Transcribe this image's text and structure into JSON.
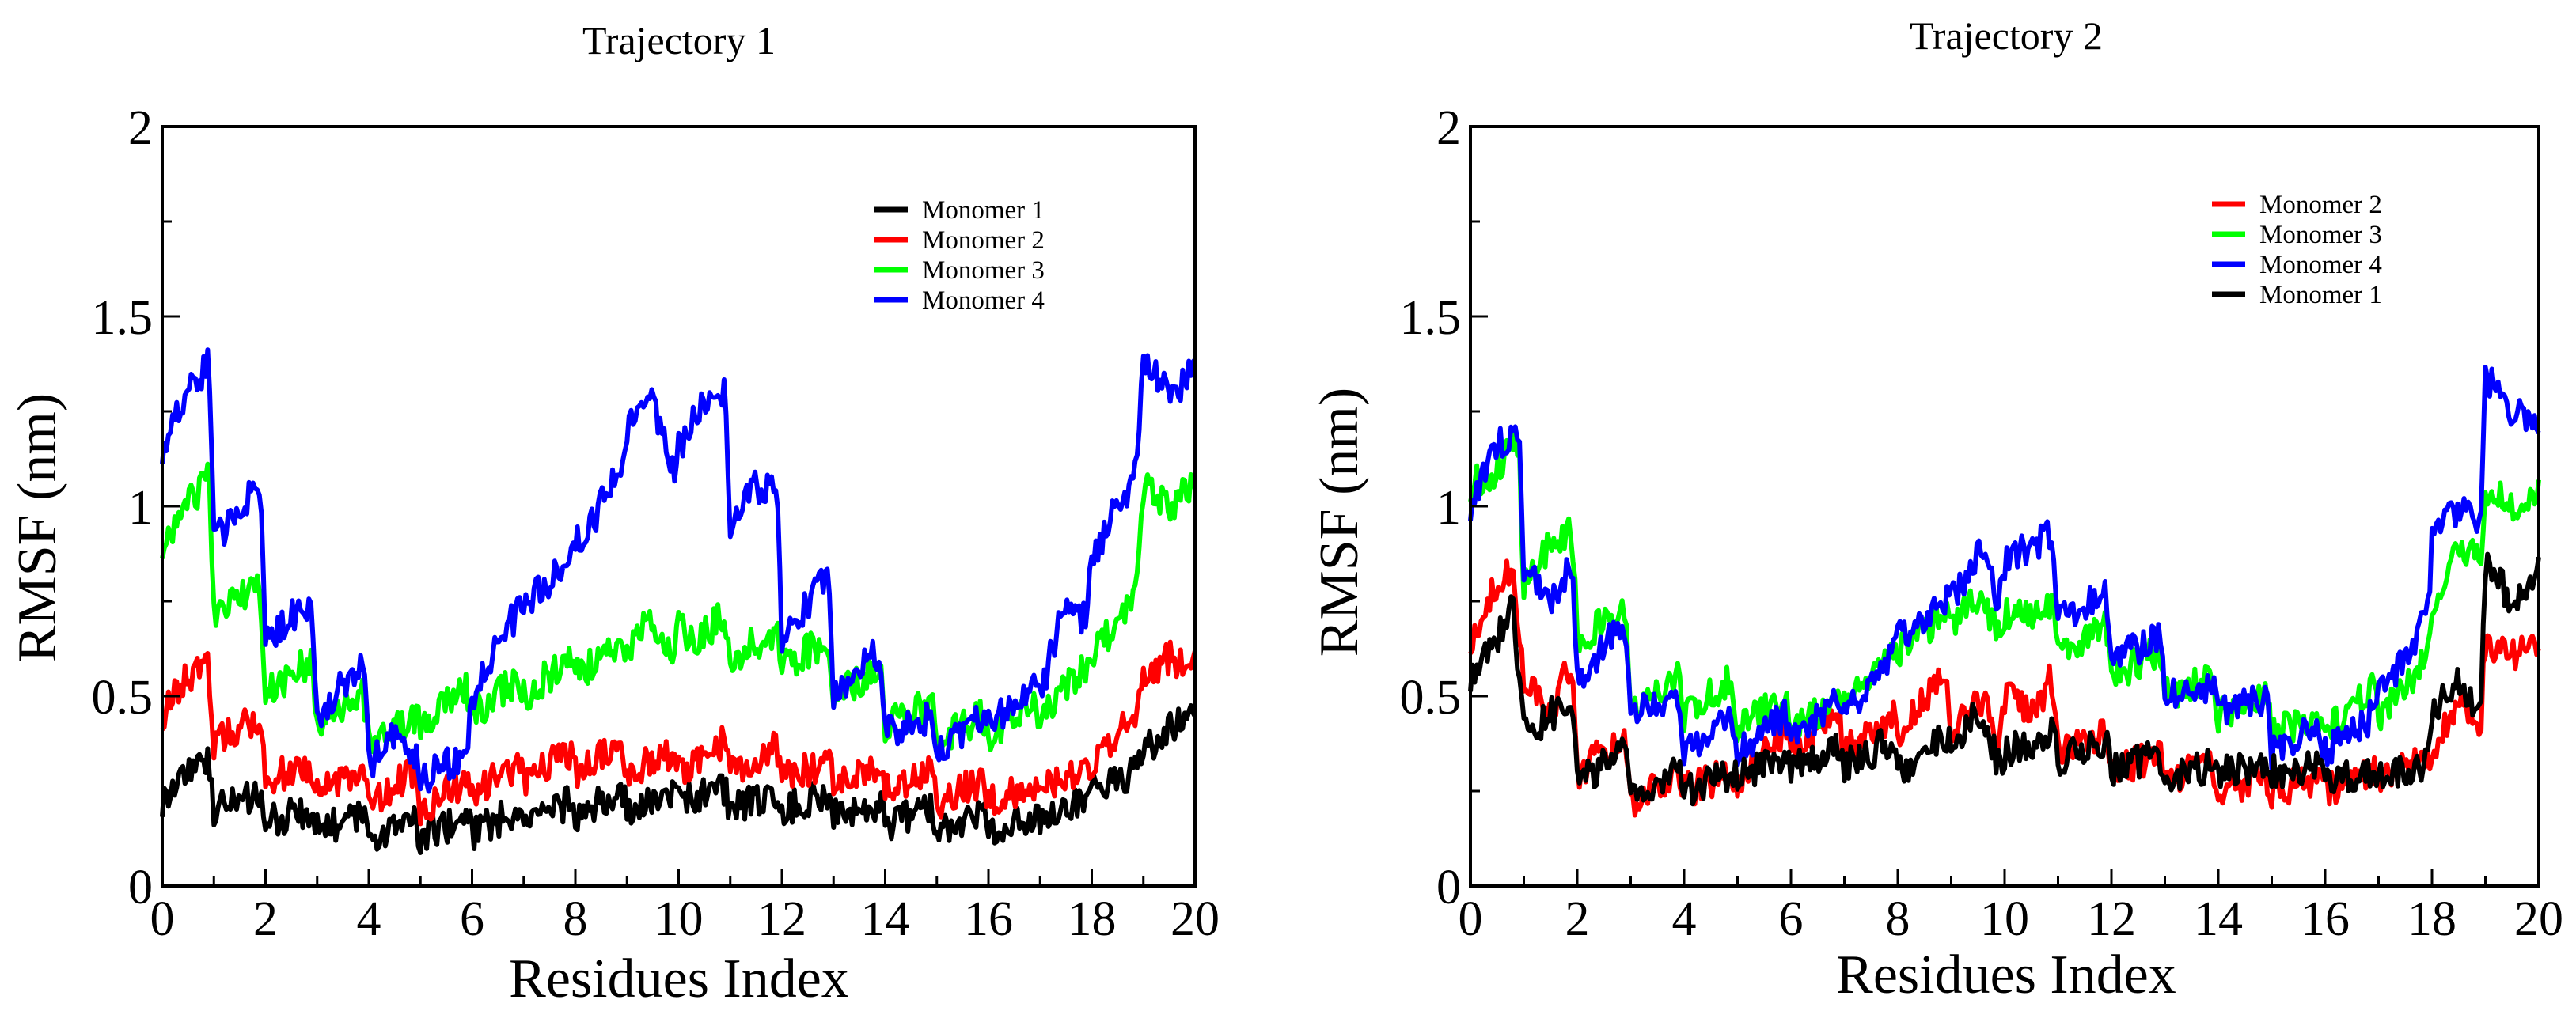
{
  "chart_data": [
    {
      "type": "line",
      "title": "Trajectory 1",
      "xlabel": "Residues Index",
      "ylabel": "RMSF (nm)",
      "xlim": [
        0,
        20
      ],
      "ylim": [
        0,
        2
      ],
      "xticks": [
        "0",
        "2",
        "4",
        "6",
        "8",
        "10",
        "12",
        "14",
        "16",
        "18",
        "20"
      ],
      "yticks": [
        "0",
        "0.5",
        "1",
        "1.5",
        "2"
      ],
      "legend_position": "top-right",
      "series": [
        {
          "name": "Monomer 1",
          "color": "#000000",
          "x": [
            0,
            0.4,
            0.9,
            1,
            1.9,
            2,
            2.9,
            3,
            3.9,
            4,
            4.9,
            5,
            5.9,
            6,
            6.9,
            7,
            7.9,
            8,
            8.9,
            9,
            9.9,
            10,
            10.9,
            11,
            11.9,
            12,
            12.9,
            13,
            13.9,
            14,
            14.9,
            15,
            15.9,
            16,
            16.9,
            17,
            17.9,
            18,
            18.9,
            19,
            19.5,
            20
          ],
          "y": [
            0.22,
            0.3,
            0.33,
            0.2,
            0.24,
            0.17,
            0.2,
            0.15,
            0.18,
            0.13,
            0.17,
            0.13,
            0.18,
            0.14,
            0.2,
            0.16,
            0.22,
            0.18,
            0.25,
            0.2,
            0.24,
            0.22,
            0.26,
            0.2,
            0.25,
            0.2,
            0.25,
            0.18,
            0.22,
            0.16,
            0.2,
            0.15,
            0.2,
            0.15,
            0.18,
            0.18,
            0.22,
            0.25,
            0.3,
            0.35,
            0.42,
            0.45
          ]
        },
        {
          "name": "Monomer 2",
          "color": "#ff0000",
          "x": [
            0,
            0.5,
            0.9,
            1,
            1.9,
            2,
            2.9,
            3,
            3.9,
            4,
            4.9,
            5,
            5.9,
            6,
            6.9,
            7,
            7.9,
            8,
            8.9,
            9,
            9.9,
            10,
            10.9,
            11,
            11.9,
            12,
            12.9,
            13,
            13.9,
            14,
            14.9,
            15,
            15.9,
            16,
            16.9,
            17,
            17.9,
            18,
            18.9,
            19,
            19.5,
            20
          ],
          "y": [
            0.45,
            0.55,
            0.58,
            0.38,
            0.45,
            0.28,
            0.32,
            0.25,
            0.3,
            0.22,
            0.3,
            0.2,
            0.28,
            0.25,
            0.32,
            0.28,
            0.35,
            0.3,
            0.37,
            0.3,
            0.35,
            0.3,
            0.38,
            0.3,
            0.37,
            0.28,
            0.33,
            0.27,
            0.32,
            0.25,
            0.3,
            0.22,
            0.28,
            0.22,
            0.27,
            0.25,
            0.3,
            0.33,
            0.45,
            0.55,
            0.6,
            0.58
          ]
        },
        {
          "name": "Monomer 3",
          "color": "#00ff00",
          "x": [
            0,
            0.5,
            0.9,
            1,
            1.9,
            2,
            2.9,
            3,
            3.9,
            4,
            4.9,
            5,
            5.9,
            6,
            6.9,
            7,
            7.9,
            8,
            8.9,
            9,
            9.4,
            9.9,
            10,
            10.4,
            10.9,
            11,
            11.9,
            12,
            12.9,
            13,
            13.9,
            14,
            14.9,
            15,
            15.9,
            16,
            16.9,
            17,
            17.9,
            18,
            18.5,
            18.9,
            19,
            19.5,
            20
          ],
          "y": [
            0.9,
            1.0,
            1.08,
            0.7,
            0.8,
            0.5,
            0.6,
            0.42,
            0.5,
            0.38,
            0.45,
            0.42,
            0.52,
            0.45,
            0.55,
            0.5,
            0.6,
            0.55,
            0.65,
            0.6,
            0.7,
            0.62,
            0.68,
            0.65,
            0.72,
            0.6,
            0.67,
            0.58,
            0.65,
            0.5,
            0.58,
            0.42,
            0.48,
            0.38,
            0.45,
            0.4,
            0.48,
            0.45,
            0.58,
            0.6,
            0.7,
            0.8,
            1.05,
            1.0,
            1.05
          ]
        },
        {
          "name": "Monomer 4",
          "color": "#0000ff",
          "x": [
            0,
            0.5,
            0.9,
            1,
            1.5,
            1.9,
            2,
            2.9,
            3,
            3.9,
            4,
            4.5,
            4.9,
            5,
            5.9,
            6,
            6.5,
            6.9,
            7,
            7.9,
            8,
            8.5,
            8.9,
            9,
            9.4,
            9.9,
            10,
            10.4,
            10.9,
            11,
            11.5,
            11.9,
            12,
            12.5,
            12.9,
            13,
            13.9,
            14,
            14.9,
            15,
            15.9,
            16,
            16.9,
            17,
            17.5,
            17.9,
            18,
            18.5,
            18.9,
            19,
            19.5,
            20
          ],
          "y": [
            1.15,
            1.3,
            1.38,
            0.9,
            1.0,
            1.05,
            0.65,
            0.75,
            0.45,
            0.6,
            0.32,
            0.4,
            0.35,
            0.28,
            0.35,
            0.5,
            0.65,
            0.72,
            0.75,
            0.85,
            0.9,
            1.0,
            1.1,
            1.2,
            1.3,
            1.1,
            1.15,
            1.25,
            1.3,
            0.95,
            1.05,
            1.05,
            0.65,
            0.75,
            0.82,
            0.5,
            0.62,
            0.4,
            0.45,
            0.35,
            0.45,
            0.42,
            0.55,
            0.5,
            0.75,
            0.7,
            0.85,
            1.0,
            1.1,
            1.4,
            1.3,
            1.35
          ]
        }
      ]
    },
    {
      "type": "line",
      "title": "Trajectory 2",
      "xlabel": "Residues Index",
      "ylabel": "RMSF (nm)",
      "xlim": [
        0,
        20
      ],
      "ylim": [
        0,
        2
      ],
      "xticks": [
        "0",
        "2",
        "4",
        "6",
        "8",
        "10",
        "12",
        "14",
        "16",
        "18",
        "20"
      ],
      "yticks": [
        "0",
        "0.5",
        "1",
        "1.5",
        "2"
      ],
      "legend_position": "top-right",
      "series": [
        {
          "name": "Monomer 2",
          "color": "#ff0000",
          "x": [
            0,
            0.5,
            0.8,
            1,
            1.5,
            1.9,
            2,
            2.9,
            3,
            3.9,
            4,
            4.9,
            5,
            5.9,
            6,
            6.9,
            7,
            7.9,
            8,
            8.5,
            8.9,
            9,
            9.5,
            9.9,
            10,
            10.5,
            10.9,
            11,
            11.9,
            12,
            12.9,
            13,
            13.9,
            14,
            14.9,
            15,
            15.9,
            16,
            16.9,
            17,
            17.9,
            18,
            18.5,
            18.9,
            19,
            19.5,
            20
          ],
          "y": [
            0.65,
            0.8,
            0.85,
            0.55,
            0.45,
            0.6,
            0.3,
            0.4,
            0.22,
            0.3,
            0.25,
            0.3,
            0.28,
            0.4,
            0.35,
            0.45,
            0.35,
            0.45,
            0.4,
            0.5,
            0.55,
            0.4,
            0.5,
            0.4,
            0.5,
            0.45,
            0.55,
            0.35,
            0.4,
            0.3,
            0.35,
            0.28,
            0.32,
            0.25,
            0.28,
            0.25,
            0.28,
            0.25,
            0.3,
            0.28,
            0.33,
            0.35,
            0.5,
            0.4,
            0.65,
            0.6,
            0.65
          ]
        },
        {
          "name": "Monomer 3",
          "color": "#00ff00",
          "x": [
            0,
            0.5,
            0.9,
            1,
            1.5,
            1.9,
            2,
            2.9,
            3,
            3.9,
            4,
            4.9,
            5,
            5.9,
            6,
            6.9,
            7,
            7.9,
            8,
            8.9,
            9,
            9.5,
            9.9,
            10,
            10.5,
            10.9,
            11,
            11.9,
            12,
            12.9,
            13,
            13.9,
            14,
            14.9,
            15,
            15.9,
            16,
            16.9,
            17,
            17.9,
            18,
            18.5,
            18.9,
            19,
            19.5,
            20
          ],
          "y": [
            1.05,
            1.1,
            1.18,
            0.8,
            0.9,
            0.95,
            0.65,
            0.72,
            0.45,
            0.55,
            0.45,
            0.55,
            0.42,
            0.5,
            0.42,
            0.48,
            0.5,
            0.6,
            0.62,
            0.72,
            0.7,
            0.75,
            0.68,
            0.72,
            0.7,
            0.75,
            0.62,
            0.68,
            0.55,
            0.62,
            0.5,
            0.55,
            0.45,
            0.5,
            0.4,
            0.45,
            0.42,
            0.52,
            0.45,
            0.6,
            0.7,
            0.9,
            0.85,
            1.05,
            1.0,
            1.05
          ]
        },
        {
          "name": "Monomer 4",
          "color": "#0000ff",
          "x": [
            0,
            0.5,
            0.9,
            1,
            1.5,
            1.9,
            2,
            2.9,
            3,
            3.9,
            4,
            4.9,
            5,
            5.9,
            6,
            6.9,
            7,
            7.9,
            8,
            8.9,
            9,
            9.5,
            9.9,
            10,
            10.5,
            10.9,
            11,
            11.9,
            12,
            12.9,
            13,
            13.9,
            14,
            14.9,
            15,
            15.9,
            16,
            16.9,
            17,
            17.9,
            18,
            18.5,
            18.9,
            19,
            19.5,
            20
          ],
          "y": [
            1.0,
            1.15,
            1.22,
            0.85,
            0.75,
            0.85,
            0.55,
            0.7,
            0.45,
            0.5,
            0.35,
            0.45,
            0.35,
            0.45,
            0.4,
            0.48,
            0.45,
            0.6,
            0.65,
            0.75,
            0.75,
            0.88,
            0.75,
            0.85,
            0.9,
            0.92,
            0.7,
            0.78,
            0.6,
            0.65,
            0.5,
            0.52,
            0.45,
            0.5,
            0.35,
            0.42,
            0.35,
            0.45,
            0.5,
            0.7,
            0.9,
            1.0,
            0.95,
            1.35,
            1.25,
            1.22
          ]
        },
        {
          "name": "Monomer 1",
          "color": "#000000",
          "x": [
            0,
            0.5,
            0.8,
            1,
            1.5,
            1.9,
            2,
            2.9,
            3,
            3.9,
            4,
            4.9,
            5,
            5.9,
            6,
            6.9,
            7,
            7.9,
            8,
            8.9,
            9,
            9.5,
            9.9,
            10,
            10.9,
            11,
            11.9,
            12,
            12.9,
            13,
            13.9,
            14,
            14.9,
            15,
            15.9,
            16,
            16.9,
            17,
            17.9,
            18,
            18.5,
            18.9,
            19,
            19.5,
            20
          ],
          "y": [
            0.55,
            0.65,
            0.75,
            0.4,
            0.45,
            0.5,
            0.28,
            0.35,
            0.25,
            0.3,
            0.25,
            0.3,
            0.28,
            0.35,
            0.3,
            0.38,
            0.32,
            0.38,
            0.3,
            0.4,
            0.38,
            0.45,
            0.32,
            0.35,
            0.4,
            0.33,
            0.38,
            0.3,
            0.35,
            0.28,
            0.32,
            0.3,
            0.32,
            0.3,
            0.32,
            0.28,
            0.3,
            0.3,
            0.32,
            0.45,
            0.55,
            0.45,
            0.85,
            0.75,
            0.85
          ]
        }
      ]
    }
  ]
}
